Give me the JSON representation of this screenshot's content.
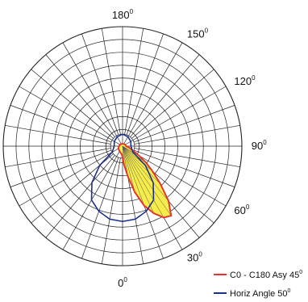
{
  "chart_data": {
    "type": "polar",
    "angle_labels": [
      {
        "value": "180",
        "angle": 180
      },
      {
        "value": "150",
        "angle": 150
      },
      {
        "value": "120",
        "angle": 120
      },
      {
        "value": "90",
        "angle": 90
      },
      {
        "value": "60",
        "angle": 60
      },
      {
        "value": "30",
        "angle": 30
      },
      {
        "value": "0",
        "angle": 0
      }
    ],
    "degree_symbol": "0",
    "angle_step": 10,
    "ring_count": 8,
    "series": [
      {
        "name": "C0 - C180  Asy 45",
        "color": "#e8322b",
        "fill": "#f6ec4a",
        "points": [
          {
            "angle": -5,
            "r": 0.07
          },
          {
            "angle": 0,
            "r": 0.1
          },
          {
            "angle": 5,
            "r": 0.16
          },
          {
            "angle": 10,
            "r": 0.26
          },
          {
            "angle": 15,
            "r": 0.4
          },
          {
            "angle": 20,
            "r": 0.53
          },
          {
            "angle": 25,
            "r": 0.62
          },
          {
            "angle": 30,
            "r": 0.69
          },
          {
            "angle": 35,
            "r": 0.71
          },
          {
            "angle": 40,
            "r": 0.6
          },
          {
            "angle": 45,
            "r": 0.45
          },
          {
            "angle": 50,
            "r": 0.33
          },
          {
            "angle": 55,
            "r": 0.24
          },
          {
            "angle": 60,
            "r": 0.16
          },
          {
            "angle": 70,
            "r": 0.08
          },
          {
            "angle": 80,
            "r": 0.05
          },
          {
            "angle": 90,
            "r": 0.03
          },
          {
            "angle": 120,
            "r": 0.025
          },
          {
            "angle": 160,
            "r": 0.02
          },
          {
            "angle": 180,
            "r": 0.02
          },
          {
            "angle": 200,
            "r": 0.02
          },
          {
            "angle": 240,
            "r": 0.025
          },
          {
            "angle": 270,
            "r": 0.03
          },
          {
            "angle": 300,
            "r": 0.04
          },
          {
            "angle": 330,
            "r": 0.05
          }
        ]
      },
      {
        "name": "Horiz Angle 50",
        "color": "#1c2f8c",
        "fill": "none",
        "points": [
          {
            "angle": -60,
            "r": 0.1
          },
          {
            "angle": -50,
            "r": 0.25
          },
          {
            "angle": -40,
            "r": 0.4
          },
          {
            "angle": -30,
            "r": 0.52
          },
          {
            "angle": -20,
            "r": 0.58
          },
          {
            "angle": -10,
            "r": 0.62
          },
          {
            "angle": 0,
            "r": 0.63
          },
          {
            "angle": 10,
            "r": 0.62
          },
          {
            "angle": 20,
            "r": 0.58
          },
          {
            "angle": 30,
            "r": 0.52
          },
          {
            "angle": 40,
            "r": 0.4
          },
          {
            "angle": 50,
            "r": 0.25
          },
          {
            "angle": 60,
            "r": 0.1
          },
          {
            "angle": 90,
            "r": 0.07
          },
          {
            "angle": 120,
            "r": 0.08
          },
          {
            "angle": 150,
            "r": 0.09
          },
          {
            "angle": 180,
            "r": 0.1
          },
          {
            "angle": 210,
            "r": 0.09
          },
          {
            "angle": 240,
            "r": 0.08
          },
          {
            "angle": 270,
            "r": 0.07
          }
        ]
      }
    ],
    "legend": [
      {
        "label": "C0 - C180  Asy 45",
        "color": "#e8322b"
      },
      {
        "label": "Horiz Angle 50",
        "color": "#1c2f8c"
      }
    ],
    "legend_position": "bottom-right",
    "grid": true
  }
}
